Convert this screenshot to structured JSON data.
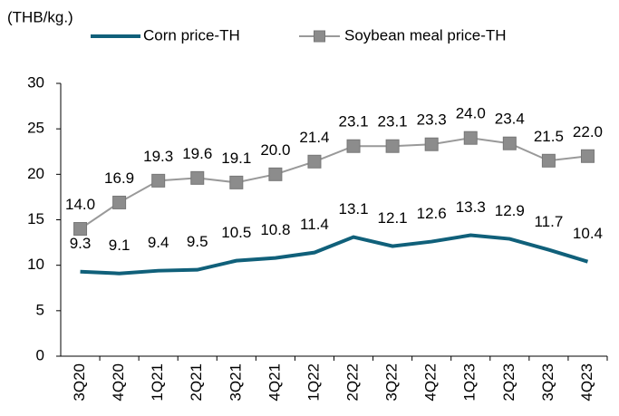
{
  "chart_data": {
    "type": "line",
    "ylabel": "(THB/kg.)",
    "categories": [
      "3Q20",
      "4Q20",
      "1Q21",
      "2Q21",
      "3Q21",
      "4Q21",
      "1Q22",
      "2Q22",
      "3Q22",
      "4Q22",
      "1Q23",
      "2Q23",
      "3Q23",
      "4Q23"
    ],
    "series": [
      {
        "name": "Corn price-TH",
        "color": "#10607a",
        "values": [
          9.3,
          9.1,
          9.4,
          9.5,
          10.5,
          10.8,
          11.4,
          13.1,
          12.1,
          12.6,
          13.3,
          12.9,
          11.7,
          10.4
        ]
      },
      {
        "name": "Soybean meal price-TH",
        "color": "#999999",
        "values": [
          14.0,
          16.9,
          19.3,
          19.6,
          19.1,
          20.0,
          21.4,
          23.1,
          23.1,
          23.3,
          24.0,
          23.4,
          21.5,
          22.0
        ],
        "value_labels": [
          "14.0",
          "16.9",
          "19.3",
          "19.6",
          "19.1",
          "20.0",
          "21.4",
          "23.1",
          "23.1",
          "23.3",
          "24.0",
          "23.4",
          "21.5",
          "22.0"
        ]
      }
    ],
    "ylim": [
      0,
      30
    ],
    "yticks": [
      0,
      5,
      10,
      15,
      20,
      25,
      30
    ],
    "grid": false
  }
}
